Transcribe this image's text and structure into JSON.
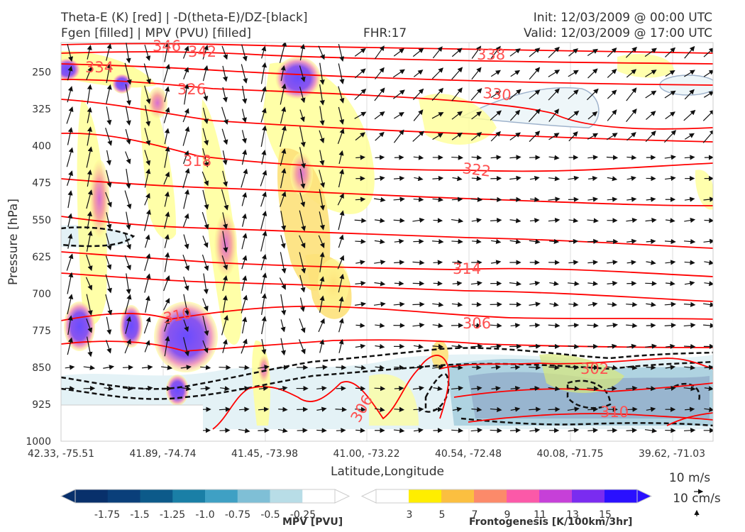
{
  "header": {
    "title_line1": "Theta-E (K) [red] | -D(theta-E)/DZ-[black]",
    "title_line2": "Fgen [filled] | MPV (PVU) [filled]",
    "fhr": "FHR:17",
    "init": "Init: 12/03/2009 @ 00:00 UTC",
    "valid": "Valid: 12/03/2009 @ 17:00 UTC"
  },
  "chart_data": {
    "type": "cross-section",
    "ylabel": "Pressure [hPa]",
    "xlabel": "Latitude,Longitude",
    "ylim": [
      1000,
      190
    ],
    "y_ticks": [
      250,
      325,
      400,
      475,
      550,
      625,
      700,
      775,
      850,
      925,
      1000
    ],
    "x_ticks": [
      "42.33, -75.51",
      "41.89, -74.74",
      "41.45, -73.98",
      "41.00, -73.22",
      "40.54, -72.48",
      "40.08, -71.75",
      "39.62, -71.03"
    ],
    "theta_e_contour_labels": [
      "346",
      "342",
      "338",
      "334",
      "330",
      "326",
      "322",
      "318",
      "314",
      "310",
      "306",
      "306",
      "302",
      "310"
    ],
    "theta_e_color": "#ff0000",
    "wind_reference": {
      "horizontal": "10 m/s",
      "vertical": "10 cm/s"
    },
    "mpv_colorbar": {
      "label": "MPV [PVU]",
      "ticks": [
        "-1.75",
        "-1.5",
        "-1.25",
        "-1.0",
        "-0.75",
        "-0.5",
        "-0.25"
      ],
      "colors": [
        "#08306b",
        "#0a3f7a",
        "#0c5a8a",
        "#1a7fa6",
        "#3fa0c4",
        "#7fbfd6",
        "#b8dde7",
        "#ffffff"
      ]
    },
    "fgen_colorbar": {
      "label": "Frontogenesis [K/100km/3hr]",
      "ticks": [
        "3",
        "5",
        "7",
        "9",
        "11",
        "13",
        "15"
      ],
      "colors": [
        "#ffffff",
        "#ffee00",
        "#fbbf40",
        "#fc8a6a",
        "#fb59a8",
        "#c640d8",
        "#7a2cf0",
        "#2a10ff"
      ]
    }
  }
}
